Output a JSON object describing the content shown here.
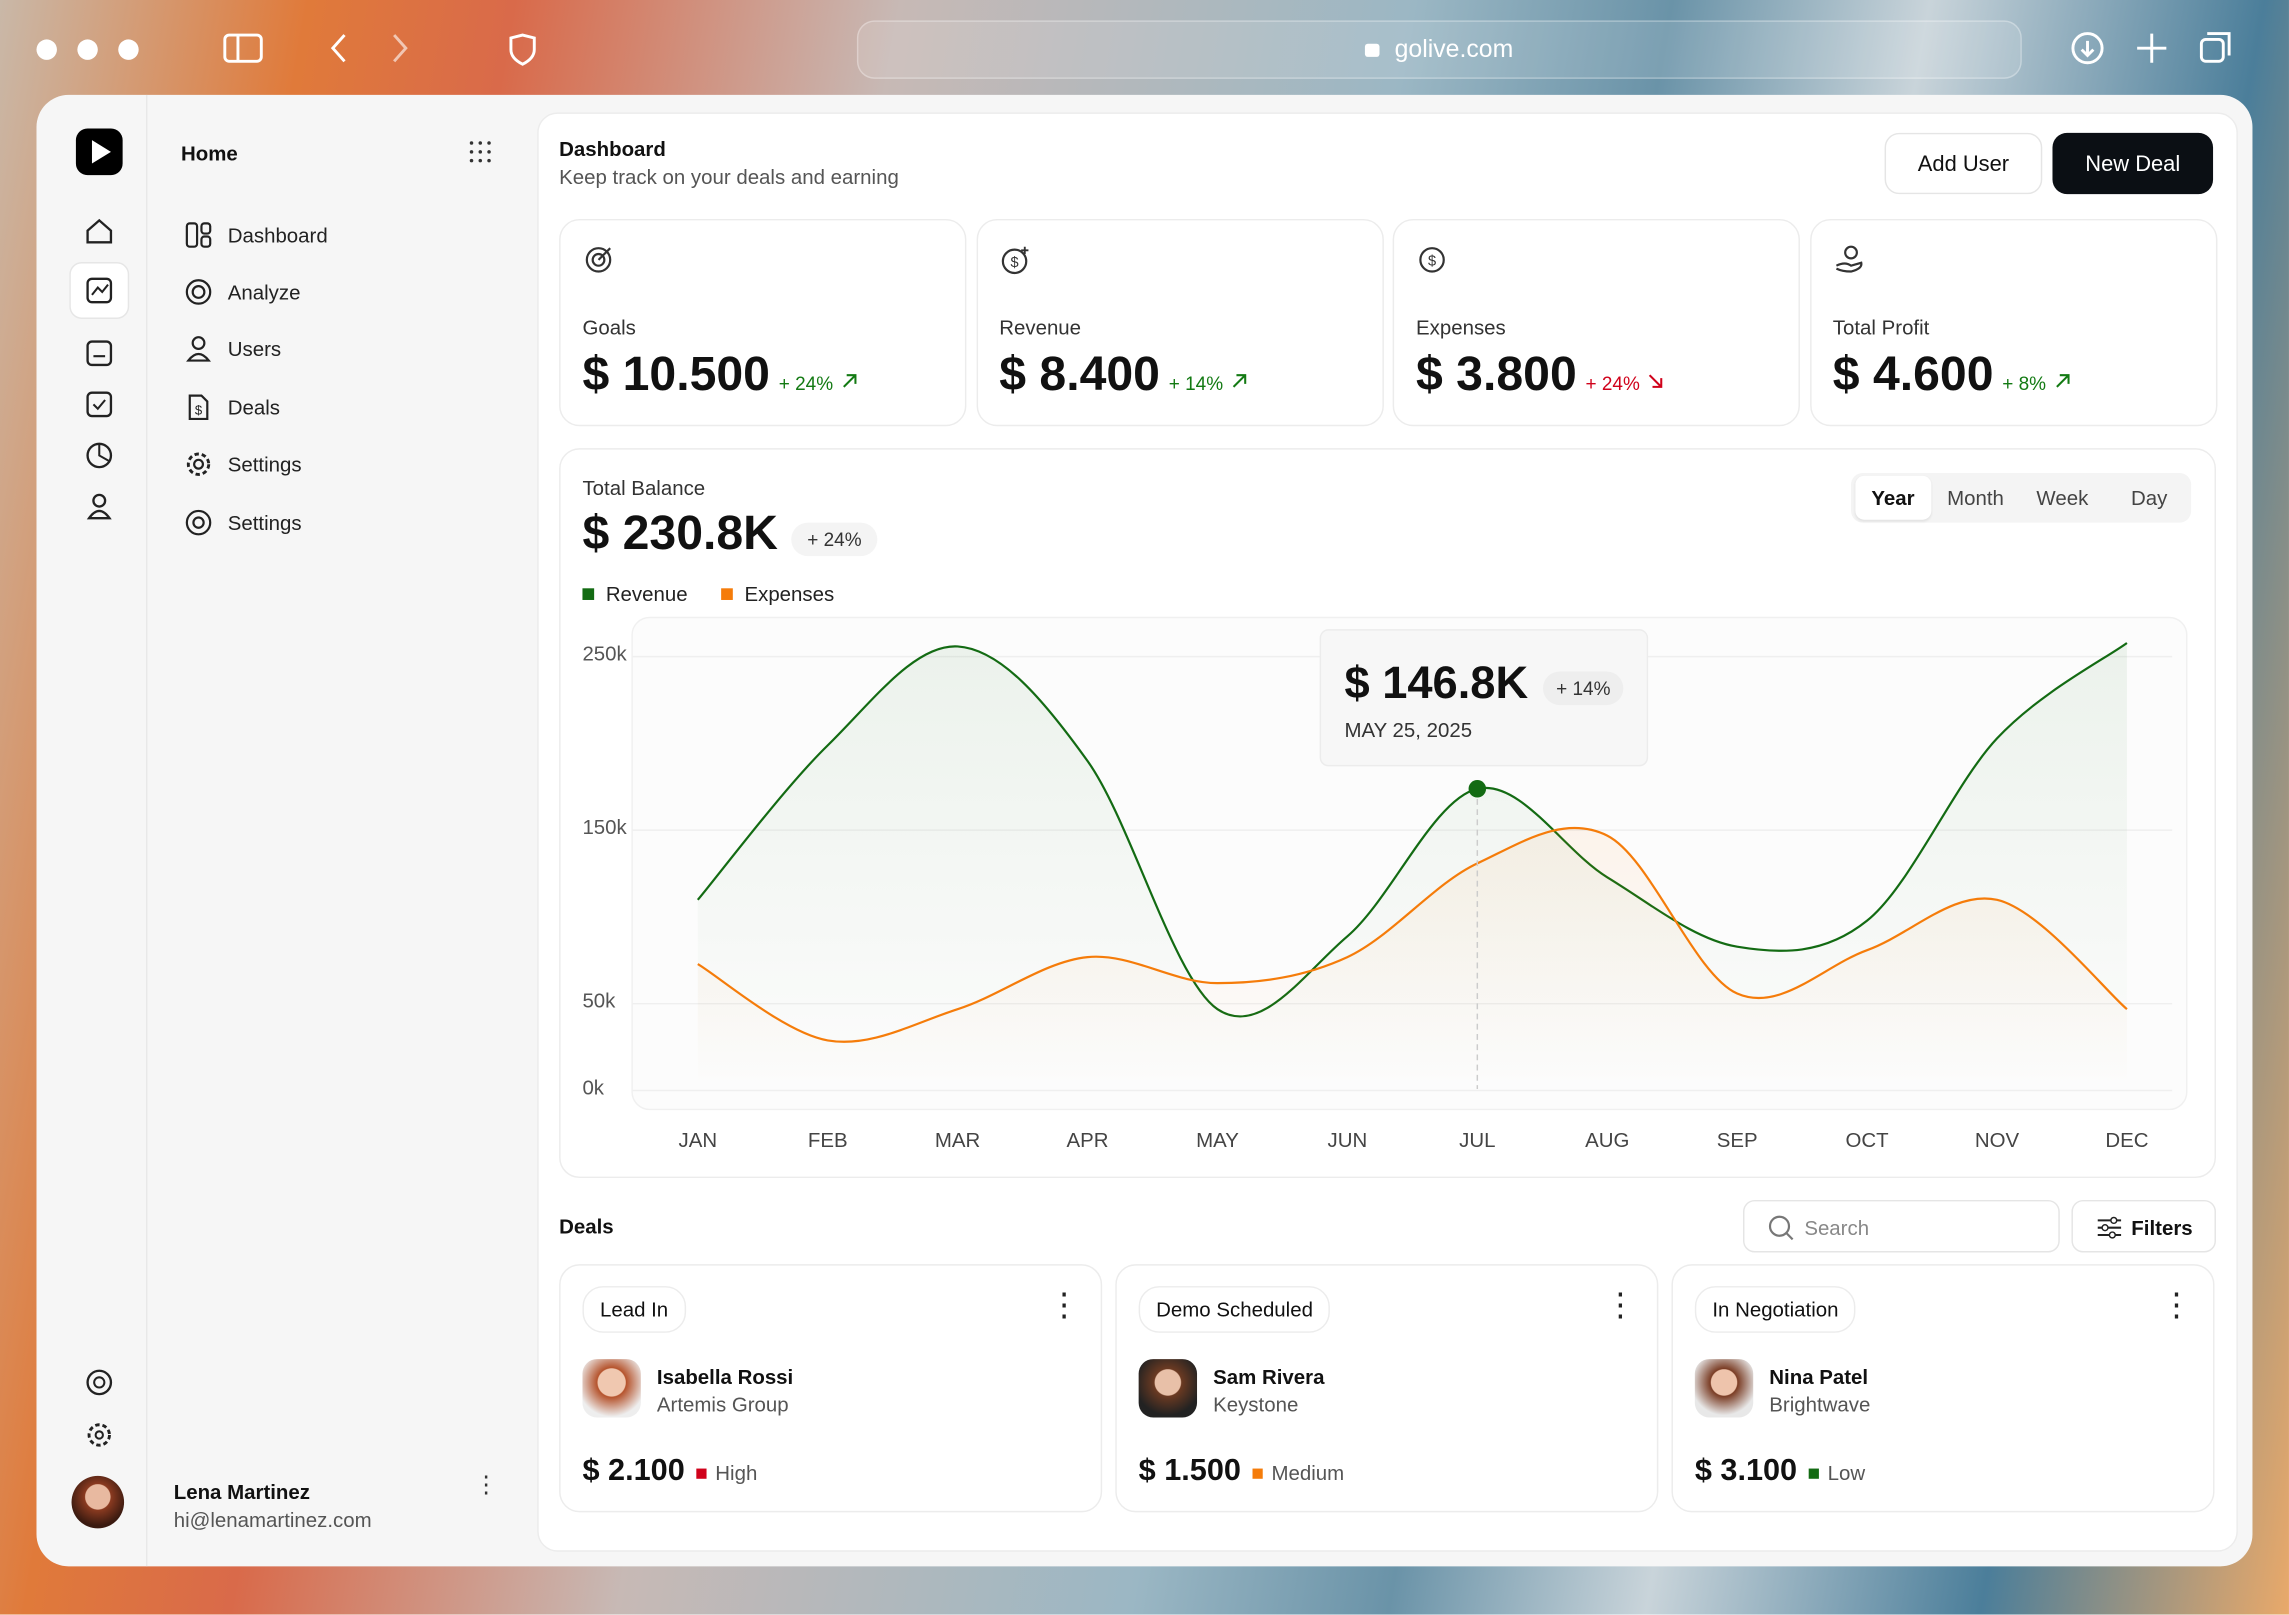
{
  "browser": {
    "url": "golive.com"
  },
  "sidebar": {
    "title": "Home",
    "nav": [
      "Dashboard",
      "Analyze",
      "Users",
      "Deals",
      "Settings",
      "Settings"
    ],
    "user": {
      "name": "Lena Martinez",
      "email": "hi@lenamartinez.com"
    }
  },
  "header": {
    "title": "Dashboard",
    "subtitle": "Keep track on your deals and earning",
    "buttons": [
      "Add User",
      "New Deal"
    ]
  },
  "stats": [
    {
      "label": "Goals",
      "value": "$ 10.500",
      "change": "+ 24%",
      "trend": "up"
    },
    {
      "label": "Revenue",
      "value": "$ 8.400",
      "change": "+ 14%",
      "trend": "up"
    },
    {
      "label": "Expenses",
      "value": "$ 3.800",
      "change": "+ 24%",
      "trend": "down"
    },
    {
      "label": "Total Profit",
      "value": "$ 4.600",
      "change": "+ 8%",
      "trend": "up"
    }
  ],
  "balance": {
    "label": "Total Balance",
    "value": "$ 230.8K",
    "change": "+ 24%",
    "periods": [
      "Year",
      "Month",
      "Week",
      "Day"
    ]
  },
  "chart_data": {
    "type": "line",
    "categories": [
      "JAN",
      "FEB",
      "MAR",
      "APR",
      "MAY",
      "JUN",
      "JUL",
      "AUG",
      "SEP",
      "OCT",
      "NOV",
      "DEC"
    ],
    "series": [
      {
        "name": "Revenue",
        "color": "#136b13",
        "values": [
          109000,
          198000,
          255000,
          189000,
          46000,
          88000,
          173000,
          122000,
          82000,
          97000,
          202000,
          257000
        ]
      },
      {
        "name": "Expenses",
        "color": "#f57c0a",
        "values": [
          72000,
          28000,
          46000,
          76000,
          61000,
          76000,
          130000,
          146000,
          55000,
          80000,
          109000,
          46000
        ]
      }
    ],
    "ylim": [
      0,
      270000
    ],
    "yticks": [
      {
        "value": 0,
        "label": "0k"
      },
      {
        "value": 50000,
        "label": "50k"
      },
      {
        "value": 150000,
        "label": "150k"
      },
      {
        "value": 250000,
        "label": "250k"
      }
    ],
    "grid": true,
    "tooltip": {
      "value": "$ 146.8K",
      "change": "+ 14%",
      "date": "MAY 25, 2025"
    }
  },
  "deals": {
    "title": "Deals",
    "search_placeholder": "Search",
    "filter": "Filters",
    "cards": [
      {
        "stage": "Lead In",
        "name": "Isabella Rossi",
        "company": "Artemis Group",
        "amount": "$ 2.100",
        "priority": "High",
        "priority_color": "#d0021b"
      },
      {
        "stage": "Demo Scheduled",
        "name": "Sam Rivera",
        "company": "Keystone",
        "amount": "$ 1.500",
        "priority": "Medium",
        "priority_color": "#f57c0a"
      },
      {
        "stage": "In Negotiation",
        "name": "Nina Patel",
        "company": "Brightwave",
        "amount": "$ 3.100",
        "priority": "Low",
        "priority_color": "#136b13"
      }
    ]
  }
}
